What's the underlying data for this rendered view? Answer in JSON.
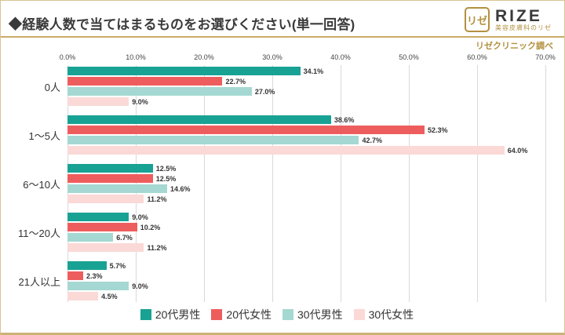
{
  "header": {
    "title": "◆経験人数で当てはまるものをお選びください(単一回答)",
    "logo": {
      "mark": "リゼ",
      "name": "RIZE",
      "subtitle": "美容皮膚科のリゼ"
    },
    "source": "リゼクリニック調べ"
  },
  "chart_data": {
    "type": "bar",
    "orientation": "horizontal",
    "title": "経験人数で当てはまるものをお選びください(単一回答)",
    "categories": [
      "0人",
      "1〜5人",
      "6〜10人",
      "11〜20人",
      "21人以上"
    ],
    "series": [
      {
        "name": "20代男性",
        "color": "#18a294",
        "values": [
          34.1,
          38.6,
          12.5,
          9.0,
          5.7
        ]
      },
      {
        "name": "20代女性",
        "color": "#ee5d5d",
        "values": [
          22.7,
          52.3,
          12.5,
          10.2,
          2.3
        ]
      },
      {
        "name": "30代男性",
        "color": "#a5d8d2",
        "values": [
          27.0,
          42.7,
          14.6,
          6.7,
          9.0
        ]
      },
      {
        "name": "30代女性",
        "color": "#fad9d7",
        "values": [
          9.0,
          64.0,
          11.2,
          11.2,
          4.5
        ]
      }
    ],
    "x_ticks": [
      "0.0%",
      "10.0%",
      "20.0%",
      "30.0%",
      "40.0%",
      "50.0%",
      "60.0%",
      "70.0%"
    ],
    "xlim": [
      0,
      70
    ],
    "value_suffix": "%",
    "grid": "vertical",
    "legend_position": "bottom"
  }
}
